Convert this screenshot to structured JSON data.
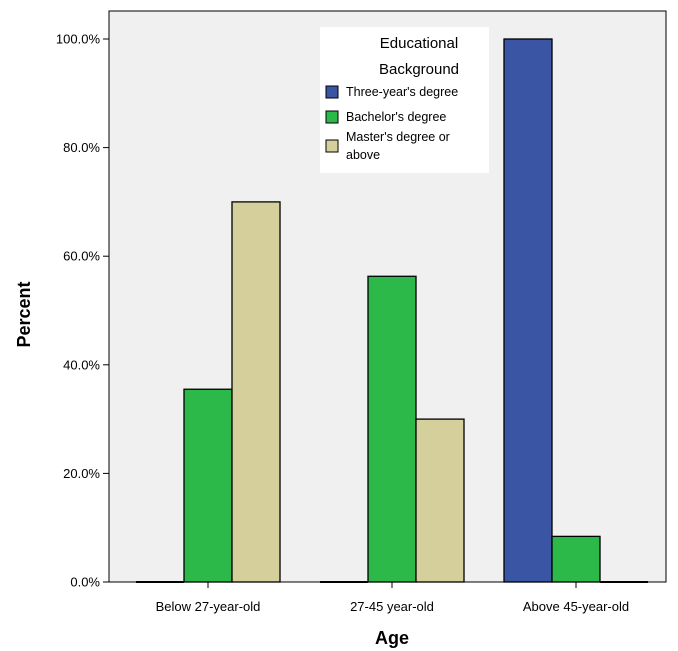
{
  "chart_data": {
    "type": "bar",
    "xlabel": "Age",
    "ylabel": "Percent",
    "categories": [
      "Below 27-year-old",
      "27-45 year-old",
      "Above 45-year-old"
    ],
    "series": [
      {
        "name": "Three-year's degree",
        "color": "#3a55a4",
        "values": [
          0.0,
          0.0,
          100.0
        ]
      },
      {
        "name": "Bachelor's degree",
        "color": "#2db84a",
        "values": [
          35.5,
          56.3,
          8.4
        ]
      },
      {
        "name": "Master's degree or above",
        "color": "#d5d09b",
        "values": [
          70.0,
          30.0,
          0.0
        ]
      }
    ],
    "ylim": [
      0,
      100
    ],
    "yticks": [
      0,
      20,
      40,
      60,
      80,
      100
    ],
    "ytick_labels": [
      "0.0%",
      "20.0%",
      "40.0%",
      "60.0%",
      "80.0%",
      "100.0%"
    ],
    "legend": {
      "title_lines": [
        "Educational",
        "Background"
      ],
      "entries": [
        [
          "Three-year's degree"
        ],
        [
          "Bachelor's degree"
        ],
        [
          "Master's degree or",
          "above"
        ]
      ],
      "placement": "top-center"
    },
    "grid": false,
    "background": "#f0f0f0"
  }
}
